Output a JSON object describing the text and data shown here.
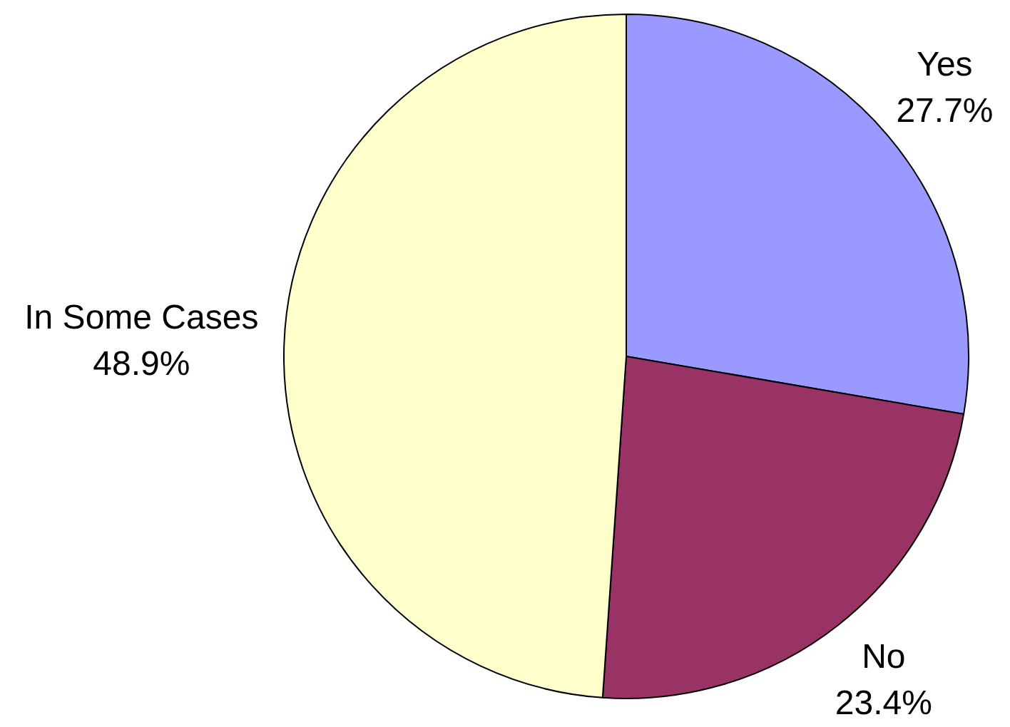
{
  "chart_data": {
    "type": "pie",
    "categories": [
      "Yes",
      "No",
      "In Some Cases"
    ],
    "values": [
      27.7,
      23.4,
      48.9
    ],
    "colors": [
      "#9999ff",
      "#993366",
      "#ffffcc"
    ],
    "value_labels": [
      "27.7%",
      "23.4%",
      "48.9%"
    ]
  }
}
